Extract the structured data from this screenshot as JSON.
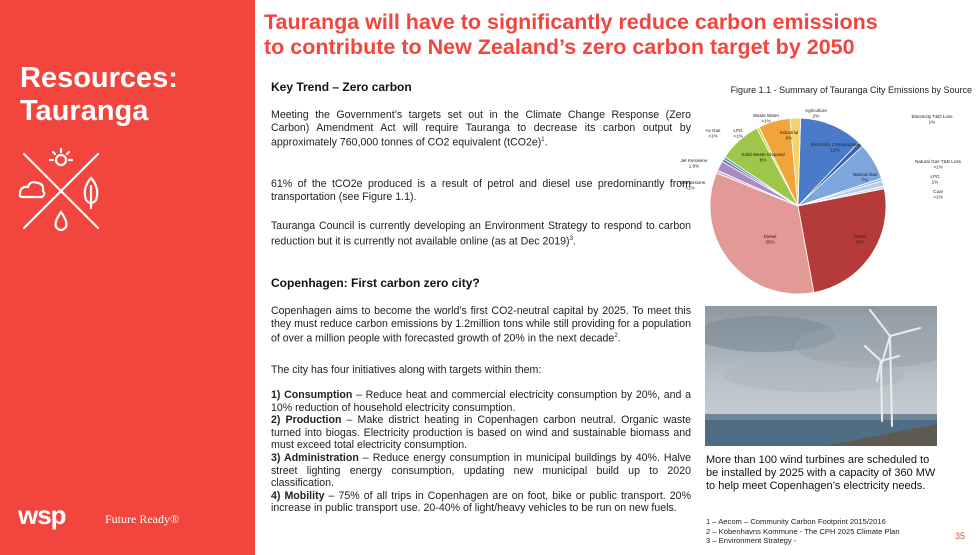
{
  "sidebar": {
    "title_line1": "Resources:",
    "title_line2": "Tauranga",
    "icon": "sun-cloud-drop-leaf-cross-icon",
    "logo_text": "wsp",
    "tagline": "Future Ready®"
  },
  "headline": {
    "line1": "Tauranga will have to significantly reduce carbon emissions",
    "line2": "to contribute to New Zealand’s zero carbon target by 2050"
  },
  "key_trend": {
    "heading": "Key Trend – Zero carbon",
    "para1": "Meeting the Government’s targets set out in the Climate Change Response (Zero Carbon) Amendment Act will require Tauranga to decrease its carbon output by approximately 760,000 tonnes of CO2 equivalent (tCO2e)",
    "para1_ref": "1",
    "para1_end": ".",
    "para2": "61% of the tCO2e produced is a result of petrol and diesel use predominantly from transportation (see Figure 1.1).",
    "para3": "Tauranga Council is currently developing an Environment Strategy to respond to carbon reduction but it is currently not available online (as at Dec 2019)",
    "para3_ref": "3",
    "para3_end": "."
  },
  "copenhagen": {
    "heading": "Copenhagen: First carbon zero city?",
    "para1": "Copenhagen aims to become the world’s first CO2-neutral capital by 2025. To meet this they must reduce carbon emissions by 1.2million tons while still providing for a population of over a million people with forecasted growth of 20% in the next decade",
    "para1_ref": "2",
    "para1_end": ".",
    "para2": "The city has four initiatives along with targets within them:",
    "initiatives": [
      {
        "label": "1) Consumption",
        "text": " – Reduce heat and commercial electricity consumption by 20%, and a 10% reduction of household electricity consumption."
      },
      {
        "label": "2) Production",
        "text": " – Make district heating in Copenhagen carbon neutral. Organic waste turned into biogas. Electricity production is based on wind and sustainable biomass and must exceed total electricity consumption."
      },
      {
        "label": "3) Administration",
        "text": " – Reduce energy consumption in municipal buildings by 40%. Halve street lighting energy consumption, updating new municipal build up to 2020 classification."
      },
      {
        "label": "4) Mobility",
        "text": " – 75% of all trips in Copenhagen are on foot, bike or public transport. 20% increase in public transport use. 20-40% of light/heavy vehicles to be run on new fuels."
      }
    ]
  },
  "figure": {
    "caption": "Figure 1.1 - Summary of Tauranga City Emissions by Source"
  },
  "chart_data": {
    "type": "pie",
    "title": "",
    "slices": [
      {
        "name": "Electricity Consumption",
        "value_label": "12%",
        "value": 12,
        "color": "#4a7bc8"
      },
      {
        "name": "Electricity T&D Loss",
        "value_label": "1%",
        "value": 1,
        "color": "#3d62a8"
      },
      {
        "name": "Natural Gas",
        "value_label": "7%",
        "value": 7,
        "color": "#7da6dd"
      },
      {
        "name": "Natural Gas T&D Loss",
        "value_label": "<1%",
        "value": 0.5,
        "color": "#9cbbe5"
      },
      {
        "name": "LPG",
        "value_label": "1%",
        "value": 1,
        "color": "#b8cde8"
      },
      {
        "name": "Coal",
        "value_label": "<1%",
        "value": 0.5,
        "color": "#cfdcef"
      },
      {
        "name": "Petrol",
        "value_label": "26%",
        "value": 26,
        "color": "#b53a3a"
      },
      {
        "name": "Diesel",
        "value_label": "35%",
        "value": 35,
        "color": "#e39a97"
      },
      {
        "name": "Rail Emissions",
        "value_label": "<1%",
        "value": 0.5,
        "color": "#d9b0c8"
      },
      {
        "name": "Jet Kerosene",
        "value_label": "1.9%",
        "value": 1.9,
        "color": "#a98bc4"
      },
      {
        "name": "Av Gas",
        "value_label": "<1%",
        "value": 0.5,
        "color": "#7a5fb0"
      },
      {
        "name": "LPG",
        "value_label": "<1%",
        "value": 0.5,
        "color": "#4aa8b0"
      },
      {
        "name": "Solid Waste Disposal",
        "value_label": "8%",
        "value": 8,
        "color": "#9dc64a"
      },
      {
        "name": "Waste Water",
        "value_label": "<1%",
        "value": 0.5,
        "color": "#c7d94e"
      },
      {
        "name": "Industrial",
        "value_label": "6%",
        "value": 6,
        "color": "#f0a43a"
      },
      {
        "name": "Agriculture",
        "value_label": "2%",
        "value": 2,
        "color": "#f3d36a"
      }
    ]
  },
  "photo": {
    "caption": "More than 100 wind turbines are scheduled to be installed by 2025 with a capacity of 360 MW to help meet Copenhagen’s electricity needs."
  },
  "footnotes": [
    "1 – Aecom – Community Carbon Footprint 2015/2016",
    "2 – Kobenhavns Kommune - The CPH 2025 Climate Plan",
    "3 – Environment Strategy -"
  ],
  "page_number": "35",
  "colors": {
    "brand_red": "#f2453d",
    "white": "#ffffff",
    "text": "#222222"
  }
}
